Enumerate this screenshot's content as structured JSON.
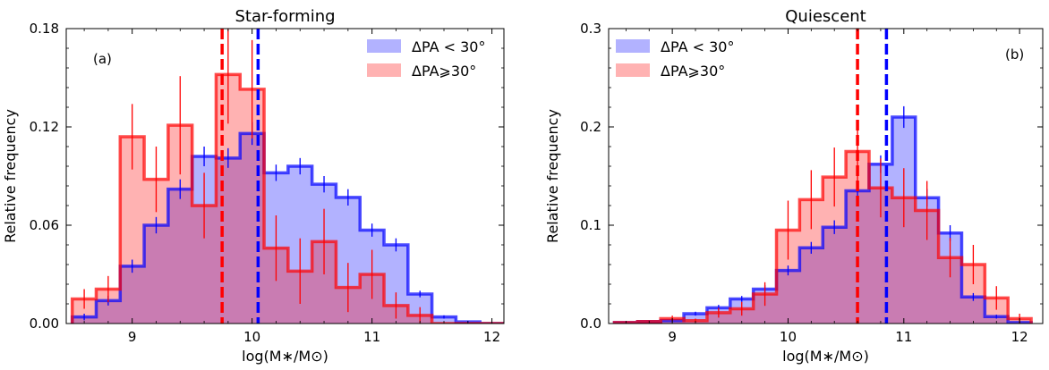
{
  "chart_data": [
    {
      "type": "histogram",
      "title": "Star-forming",
      "panel_label": "(a)",
      "xlabel": "log(M∗/M⊙)",
      "ylabel": "Relative frequency",
      "xlim": [
        8.45,
        12.1
      ],
      "ylim": [
        0,
        0.18
      ],
      "xticks": [
        9,
        10,
        11,
        12
      ],
      "xtick_labels": [
        "9",
        "10",
        "11",
        "12"
      ],
      "yticks": [
        0,
        0.06,
        0.12,
        0.18
      ],
      "ytick_labels": [
        "0.00",
        "0.06",
        "0.12",
        "0.18"
      ],
      "legend_position": "upper right",
      "bin_edges": [
        8.5,
        8.7,
        8.9,
        9.1,
        9.3,
        9.5,
        9.7,
        9.9,
        10.1,
        10.3,
        10.5,
        10.7,
        10.9,
        11.1,
        11.3,
        11.5,
        11.7,
        11.9,
        12.1
      ],
      "series": [
        {
          "name": "ΔPA < 30°",
          "color": "#0000ff",
          "values": [
            0.004,
            0.014,
            0.035,
            0.06,
            0.082,
            0.102,
            0.101,
            0.116,
            0.092,
            0.096,
            0.085,
            0.077,
            0.057,
            0.048,
            0.018,
            0.004,
            0.001,
            0.0
          ],
          "errors": [
            0.002,
            0.003,
            0.004,
            0.005,
            0.006,
            0.006,
            0.006,
            0.007,
            0.005,
            0.005,
            0.005,
            0.005,
            0.004,
            0.004,
            0.002,
            0.001,
            0.0005,
            0.0
          ]
        },
        {
          "name": "ΔPA⩾30°",
          "color": "#ff0000",
          "values": [
            0.015,
            0.021,
            0.114,
            0.088,
            0.121,
            0.072,
            0.152,
            0.143,
            0.046,
            0.032,
            0.05,
            0.022,
            0.03,
            0.011,
            0.005,
            0.0,
            0.0,
            0.0
          ],
          "errors": [
            0.006,
            0.008,
            0.02,
            0.02,
            0.03,
            0.02,
            0.03,
            0.03,
            0.02,
            0.02,
            0.02,
            0.015,
            0.015,
            0.008,
            0.005,
            0.0,
            0.0,
            0.0
          ]
        }
      ],
      "vlines": [
        {
          "x": 9.75,
          "color": "#ff0000"
        },
        {
          "x": 10.05,
          "color": "#0000ff"
        }
      ]
    },
    {
      "type": "histogram",
      "title": "Quiescent",
      "panel_label": "(b)",
      "xlabel": "log(M∗/M⊙)",
      "ylabel": "Relative frequency",
      "xlim": [
        8.45,
        12.2
      ],
      "ylim": [
        0,
        0.3
      ],
      "xticks": [
        9,
        10,
        11,
        12
      ],
      "xtick_labels": [
        "9",
        "10",
        "11",
        "12"
      ],
      "yticks": [
        0,
        0.1,
        0.2,
        0.3
      ],
      "ytick_labels": [
        "0.0",
        "0.1",
        "0.2",
        "0.3"
      ],
      "legend_position": "upper left",
      "bin_edges": [
        8.5,
        8.7,
        8.9,
        9.1,
        9.3,
        9.5,
        9.7,
        9.9,
        10.1,
        10.3,
        10.5,
        10.7,
        10.9,
        11.1,
        11.3,
        11.5,
        11.7,
        11.9,
        12.1
      ],
      "series": [
        {
          "name": "ΔPA < 30°",
          "color": "#0000ff",
          "values": [
            0.001,
            0.002,
            0.003,
            0.01,
            0.016,
            0.025,
            0.035,
            0.054,
            0.077,
            0.098,
            0.135,
            0.162,
            0.21,
            0.128,
            0.092,
            0.027,
            0.007,
            0.001
          ],
          "errors": [
            0.001,
            0.001,
            0.001,
            0.002,
            0.003,
            0.003,
            0.004,
            0.005,
            0.006,
            0.007,
            0.008,
            0.009,
            0.011,
            0.009,
            0.008,
            0.004,
            0.002,
            0.001
          ]
        },
        {
          "name": "ΔPA⩾30°",
          "color": "#ff0000",
          "values": [
            0.001,
            0.002,
            0.005,
            0.003,
            0.011,
            0.015,
            0.03,
            0.095,
            0.126,
            0.149,
            0.175,
            0.138,
            0.128,
            0.115,
            0.067,
            0.06,
            0.026,
            0.005
          ],
          "errors": [
            0.001,
            0.001,
            0.003,
            0.002,
            0.005,
            0.007,
            0.012,
            0.03,
            0.03,
            0.03,
            0.03,
            0.03,
            0.03,
            0.03,
            0.02,
            0.02,
            0.012,
            0.005
          ]
        }
      ],
      "vlines": [
        {
          "x": 10.6,
          "color": "#ff0000"
        },
        {
          "x": 10.85,
          "color": "#0000ff"
        }
      ]
    }
  ]
}
